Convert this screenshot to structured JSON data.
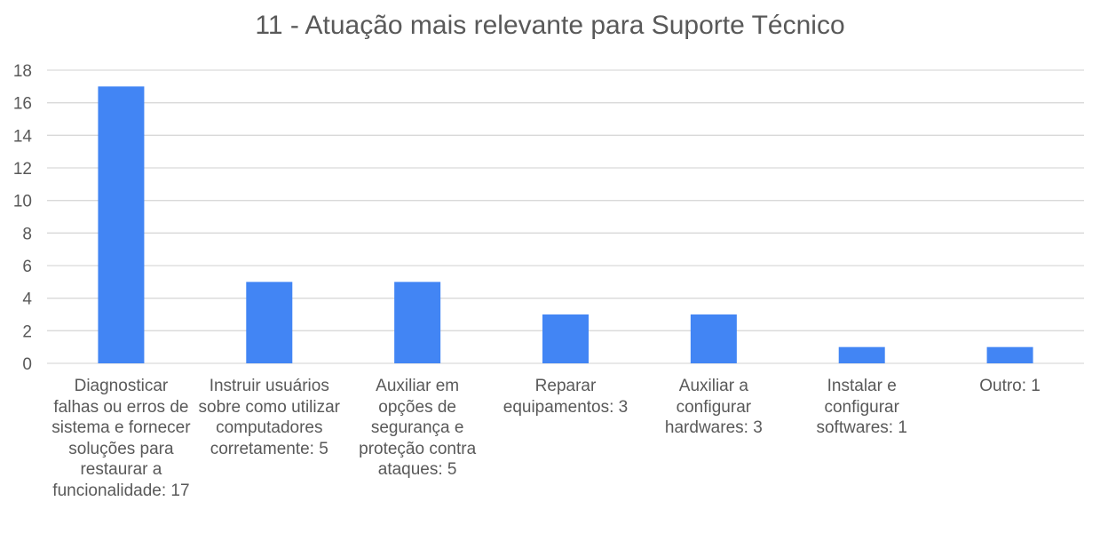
{
  "chart_data": {
    "type": "bar",
    "title": "11 - Atuação mais relevante para Suporte Técnico",
    "xlabel": "",
    "ylabel": "",
    "ylim": [
      0,
      18
    ],
    "yticks": [
      0,
      2,
      4,
      6,
      8,
      10,
      12,
      14,
      16,
      18
    ],
    "grid": true,
    "legend": "none",
    "bar_color": "#4285F4",
    "categories": [
      "Diagnosticar falhas ou erros de sistema e fornecer soluções para restaurar a funcionalidade: 17",
      "Instruir usuários sobre como utilizar computadores corretamente: 5",
      "Auxiliar em opções de segurança e proteção contra ataques: 5",
      "Reparar equipamentos: 3",
      "Auxiliar a configurar hardwares: 3",
      "Instalar e configurar softwares: 1",
      "Outro: 1"
    ],
    "values": [
      17,
      5,
      5,
      3,
      3,
      1,
      1
    ]
  }
}
